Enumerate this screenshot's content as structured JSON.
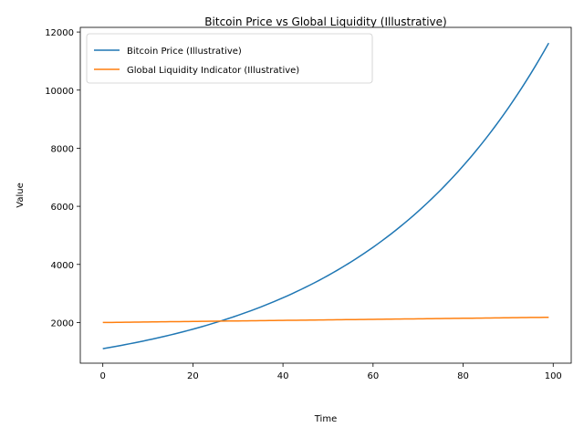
{
  "chart_data": {
    "type": "line",
    "title": "Bitcoin Price vs Global Liquidity (Illustrative)",
    "xlabel": "Time",
    "ylabel": "Value",
    "xlim": [
      -5,
      104
    ],
    "ylim": [
      600,
      12160
    ],
    "xticks": [
      0,
      20,
      40,
      60,
      80,
      100
    ],
    "yticks": [
      2000,
      4000,
      6000,
      8000,
      10000,
      12000
    ],
    "legend_position": "top-left",
    "series": [
      {
        "name": "Bitcoin Price (Illustrative)",
        "color": "#1f77b4",
        "model": "exponential",
        "x_start": 0,
        "x_end": 99,
        "y_start": 1100,
        "y_end": 11620
      },
      {
        "name": "Global Liquidity Indicator (Illustrative)",
        "color": "#ff7f0e",
        "model": "linear",
        "x_start": 0,
        "x_end": 99,
        "y_start": 2000,
        "y_end": 2180
      }
    ]
  }
}
